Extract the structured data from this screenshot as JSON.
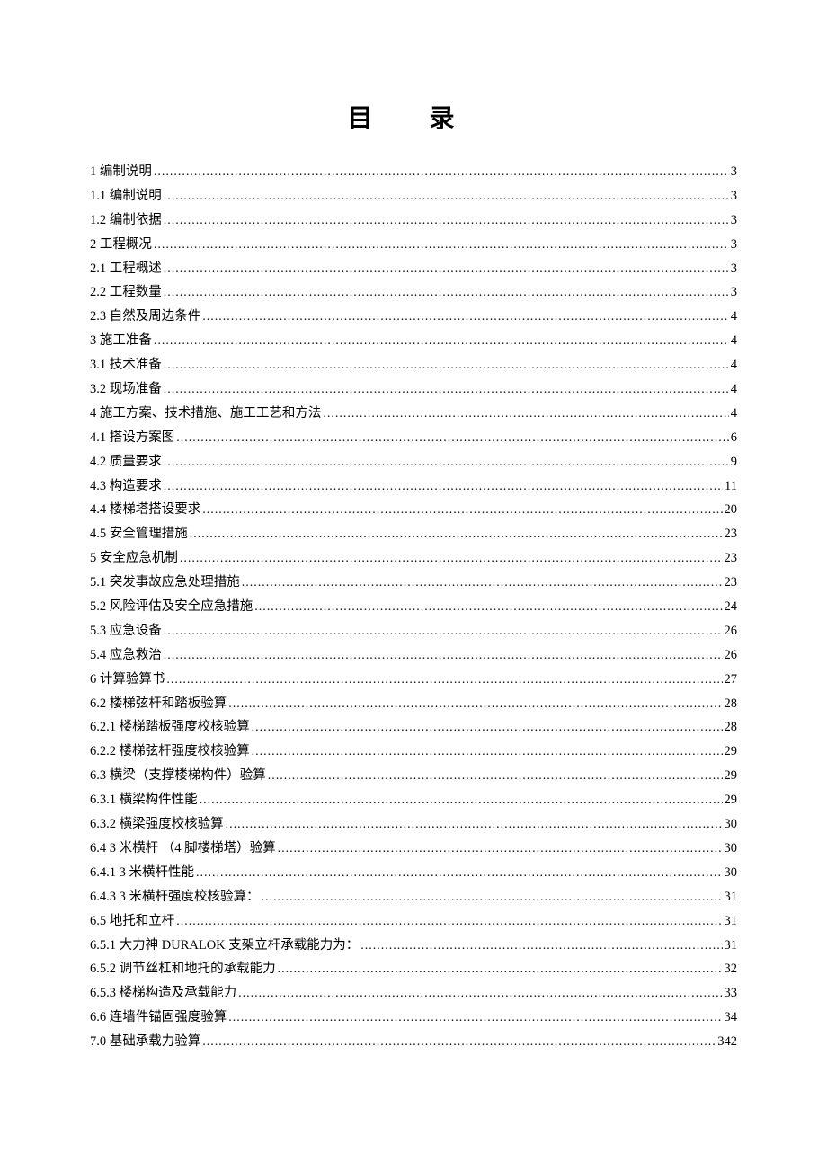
{
  "title": "目 录",
  "toc": [
    {
      "label": "1 编制说明",
      "page": "3"
    },
    {
      "label": "1.1 编制说明",
      "page": "3"
    },
    {
      "label": "1.2 编制依据",
      "page": "3"
    },
    {
      "label": "2 工程概况",
      "page": "3"
    },
    {
      "label": "2.1 工程概述",
      "page": "3"
    },
    {
      "label": "2.2 工程数量",
      "page": "3"
    },
    {
      "label": "2.3 自然及周边条件",
      "page": "4"
    },
    {
      "label": "3 施工准备",
      "page": "4"
    },
    {
      "label": "3.1 技术准备",
      "page": "4"
    },
    {
      "label": "3.2 现场准备",
      "page": "4"
    },
    {
      "label": "4 施工方案、技术措施、施工工艺和方法",
      "page": "4"
    },
    {
      "label": "4.1 搭设方案图",
      "page": "6"
    },
    {
      "label": "4.2 质量要求",
      "page": "9"
    },
    {
      "label": "4.3 构造要求",
      "page": "11"
    },
    {
      "label": "4.4 楼梯塔搭设要求",
      "page": "20"
    },
    {
      "label": "4.5 安全管理措施",
      "page": "23"
    },
    {
      "label": "5 安全应急机制",
      "page": "23"
    },
    {
      "label": "5.1 突发事故应急处理措施",
      "page": "23"
    },
    {
      "label": "5.2 风险评估及安全应急措施",
      "page": "24"
    },
    {
      "label": "5.3 应急设备",
      "page": "26"
    },
    {
      "label": "5.4 应急救治",
      "page": "26"
    },
    {
      "label": "6 计算验算书",
      "page": "27"
    },
    {
      "label": "6.2 楼梯弦杆和踏板验算",
      "page": "28"
    },
    {
      "label": "6.2.1 楼梯踏板强度校核验算",
      "page": "28"
    },
    {
      "label": "6.2.2 楼梯弦杆强度校核验算",
      "page": "29"
    },
    {
      "label": "6.3  横梁（支撑楼梯构件）验算",
      "page": "29"
    },
    {
      "label": "6.3.1 横梁构件性能",
      "page": "29"
    },
    {
      "label": "6.3.2  横梁强度校核验算",
      "page": "30"
    },
    {
      "label": "6.4  3 米横杆 （4 脚楼梯塔）验算",
      "page": "30"
    },
    {
      "label": "6.4.1 3 米横杆性能",
      "page": "30"
    },
    {
      "label": "6.4.3 3 米横杆强度校核验算：",
      "page": "31"
    },
    {
      "label": "6.5 地托和立杆",
      "page": "31"
    },
    {
      "label": "6.5.1 大力神 DURALOK 支架立杆承载能力为：",
      "page": "31"
    },
    {
      "label": "6.5.2 调节丝杠和地托的承载能力",
      "page": "32"
    },
    {
      "label": "6.5.3  楼梯构造及承载能力",
      "page": "33"
    },
    {
      "label": "6.6 连墙件锚固强度验算",
      "page": "34"
    },
    {
      "label": "7.0 基础承载力验算",
      "page": "342"
    }
  ]
}
